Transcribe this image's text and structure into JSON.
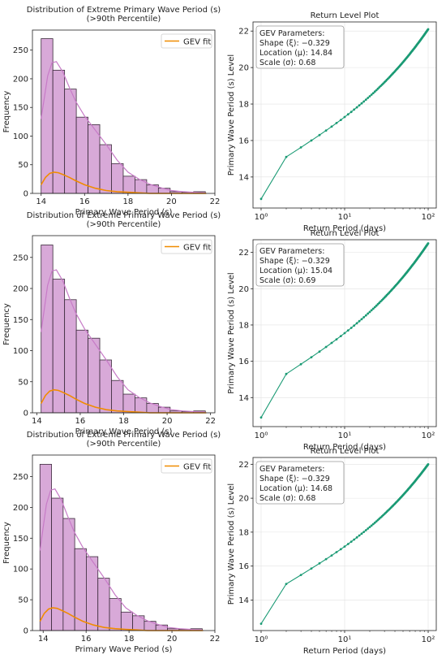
{
  "chart_data": [
    {
      "type": "bar",
      "title": "Distribution of Extreme Primary Wave Period (s)",
      "subtitle": "(>90th Percentile)",
      "xlabel": "Primary Wave Period (s)",
      "ylabel": "Frequency",
      "xlim": [
        13.6,
        22.0
      ],
      "ylim": [
        0,
        285
      ],
      "xticks": [
        14,
        16,
        18,
        20,
        22
      ],
      "yticks": [
        0,
        50,
        100,
        150,
        200,
        250
      ],
      "bins": [
        {
          "x0": 14.0,
          "x1": 14.54,
          "value": 270
        },
        {
          "x0": 14.54,
          "x1": 15.08,
          "value": 215
        },
        {
          "x0": 15.08,
          "x1": 15.62,
          "value": 182
        },
        {
          "x0": 15.62,
          "x1": 16.16,
          "value": 133
        },
        {
          "x0": 16.16,
          "x1": 16.7,
          "value": 120
        },
        {
          "x0": 16.7,
          "x1": 17.24,
          "value": 85
        },
        {
          "x0": 17.24,
          "x1": 17.78,
          "value": 52
        },
        {
          "x0": 17.78,
          "x1": 18.32,
          "value": 30
        },
        {
          "x0": 18.32,
          "x1": 18.86,
          "value": 24
        },
        {
          "x0": 18.86,
          "x1": 19.4,
          "value": 15
        },
        {
          "x0": 19.4,
          "x1": 19.94,
          "value": 9
        },
        {
          "x0": 19.94,
          "x1": 20.48,
          "value": 3
        },
        {
          "x0": 20.48,
          "x1": 21.02,
          "value": 2
        },
        {
          "x0": 21.02,
          "x1": 21.56,
          "value": 3
        }
      ],
      "kde": {
        "x": [
          14.0,
          14.3,
          14.5,
          14.7,
          15.0,
          15.3,
          15.6,
          16.0,
          16.5,
          17.0,
          17.5,
          18.0,
          18.5,
          19.0,
          19.5,
          20.0,
          20.5,
          21.0,
          21.5,
          21.6
        ],
        "y": [
          130,
          205,
          228,
          230,
          212,
          185,
          160,
          135,
          110,
          85,
          58,
          37,
          25,
          16,
          10,
          5,
          3,
          2,
          1,
          0
        ]
      },
      "gev_fit": {
        "name": "GEV fit",
        "x": [
          14.0,
          14.2,
          14.4,
          14.6,
          14.8,
          15.0,
          15.3,
          15.6,
          16.0,
          16.5,
          17.0,
          17.5,
          18.0,
          18.5,
          19.0,
          19.5,
          20.0,
          20.5,
          21.0,
          21.5,
          21.6
        ],
        "y": [
          15,
          28,
          35,
          37,
          36,
          33,
          28,
          22,
          15,
          9,
          5,
          3,
          2,
          1,
          0,
          0,
          0,
          0,
          0,
          0,
          0
        ]
      }
    },
    {
      "type": "line",
      "title": "Return Level Plot",
      "xlabel": "Return Period (days)",
      "ylabel": "Primary Wave Period (s) Level",
      "xscale": "log",
      "xlim": [
        0.8,
        125
      ],
      "ylim": [
        12.3,
        22.5
      ],
      "yticks": [
        14,
        16,
        18,
        20,
        22
      ],
      "xticks": [
        1,
        10,
        100
      ],
      "xtick_labels": [
        "10⁰",
        "10¹",
        "10²"
      ],
      "params_box": {
        "heading": "GEV Parameters:",
        "shape": "Shape (ξ): −0.329",
        "location": "Location (μ): 14.84",
        "scale": "Scale (σ): 0.68"
      },
      "curve": {
        "level_at_1": 12.8,
        "level_at_2": 15.1,
        "level_at_100": 22.1
      }
    },
    {
      "type": "bar",
      "title": "Distribution of Extreme Primary Wave Period (s)",
      "subtitle": "(>90th Percentile)",
      "xlabel": "Primary Wave Period (s)",
      "ylabel": "Frequency",
      "xlim": [
        13.8,
        22.2
      ],
      "ylim": [
        0,
        285
      ],
      "xticks": [
        14,
        16,
        18,
        20,
        22
      ],
      "yticks": [
        0,
        50,
        100,
        150,
        200,
        250
      ],
      "bins": [
        {
          "x0": 14.2,
          "x1": 14.74,
          "value": 270
        },
        {
          "x0": 14.74,
          "x1": 15.28,
          "value": 215
        },
        {
          "x0": 15.28,
          "x1": 15.82,
          "value": 182
        },
        {
          "x0": 15.82,
          "x1": 16.36,
          "value": 133
        },
        {
          "x0": 16.36,
          "x1": 16.9,
          "value": 120
        },
        {
          "x0": 16.9,
          "x1": 17.44,
          "value": 85
        },
        {
          "x0": 17.44,
          "x1": 17.98,
          "value": 52
        },
        {
          "x0": 17.98,
          "x1": 18.52,
          "value": 30
        },
        {
          "x0": 18.52,
          "x1": 19.06,
          "value": 24
        },
        {
          "x0": 19.06,
          "x1": 19.6,
          "value": 15
        },
        {
          "x0": 19.6,
          "x1": 20.14,
          "value": 9
        },
        {
          "x0": 20.14,
          "x1": 20.68,
          "value": 3
        },
        {
          "x0": 20.68,
          "x1": 21.22,
          "value": 2
        },
        {
          "x0": 21.22,
          "x1": 21.76,
          "value": 3
        }
      ],
      "kde": {
        "x": [
          14.2,
          14.5,
          14.7,
          14.9,
          15.2,
          15.5,
          15.8,
          16.2,
          16.7,
          17.2,
          17.7,
          18.2,
          18.7,
          19.2,
          19.7,
          20.2,
          20.7,
          21.2,
          21.7,
          21.8
        ],
        "y": [
          130,
          205,
          228,
          230,
          212,
          185,
          160,
          135,
          110,
          85,
          58,
          37,
          25,
          16,
          10,
          5,
          3,
          2,
          1,
          0
        ]
      },
      "gev_fit": {
        "name": "GEV fit",
        "x": [
          14.2,
          14.4,
          14.6,
          14.8,
          15.0,
          15.2,
          15.5,
          15.8,
          16.2,
          16.7,
          17.2,
          17.7,
          18.2,
          18.7,
          19.2,
          19.7,
          20.2,
          20.7,
          21.2,
          21.7,
          21.8
        ],
        "y": [
          15,
          28,
          35,
          37,
          36,
          33,
          28,
          22,
          15,
          9,
          5,
          3,
          2,
          1,
          0,
          0,
          0,
          0,
          0,
          0,
          0
        ]
      }
    },
    {
      "type": "line",
      "title": "Return Level Plot",
      "xlabel": "Return Period (days)",
      "ylabel": "Primary Wave Period (s) Level",
      "xscale": "log",
      "xlim": [
        0.8,
        125
      ],
      "ylim": [
        12.4,
        22.7
      ],
      "yticks": [
        14,
        16,
        18,
        20,
        22
      ],
      "xticks": [
        1,
        10,
        100
      ],
      "xtick_labels": [
        "10⁰",
        "10¹",
        "10²"
      ],
      "params_box": {
        "heading": "GEV Parameters:",
        "shape": "Shape (ξ): −0.329",
        "location": "Location (μ): 15.04",
        "scale": "Scale (σ): 0.69"
      },
      "curve": {
        "level_at_1": 12.9,
        "level_at_2": 15.3,
        "level_at_100": 22.5
      }
    },
    {
      "type": "bar",
      "title": "Distribution of Extreme Primary Wave Period (s)",
      "subtitle": "(>90th Percentile)",
      "xlabel": "Primary Wave Period (s)",
      "ylabel": "Frequency",
      "xlim": [
        13.5,
        22.0
      ],
      "ylim": [
        0,
        285
      ],
      "xticks": [
        14,
        16,
        18,
        20,
        22
      ],
      "yticks": [
        0,
        50,
        100,
        150,
        200,
        250
      ],
      "bins": [
        {
          "x0": 13.85,
          "x1": 14.39,
          "value": 270
        },
        {
          "x0": 14.39,
          "x1": 14.93,
          "value": 215
        },
        {
          "x0": 14.93,
          "x1": 15.47,
          "value": 182
        },
        {
          "x0": 15.47,
          "x1": 16.01,
          "value": 133
        },
        {
          "x0": 16.01,
          "x1": 16.55,
          "value": 120
        },
        {
          "x0": 16.55,
          "x1": 17.09,
          "value": 85
        },
        {
          "x0": 17.09,
          "x1": 17.63,
          "value": 52
        },
        {
          "x0": 17.63,
          "x1": 18.17,
          "value": 30
        },
        {
          "x0": 18.17,
          "x1": 18.71,
          "value": 24
        },
        {
          "x0": 18.71,
          "x1": 19.25,
          "value": 15
        },
        {
          "x0": 19.25,
          "x1": 19.79,
          "value": 9
        },
        {
          "x0": 19.79,
          "x1": 20.33,
          "value": 3
        },
        {
          "x0": 20.33,
          "x1": 20.87,
          "value": 2
        },
        {
          "x0": 20.87,
          "x1": 21.41,
          "value": 3
        }
      ],
      "kde": {
        "x": [
          13.85,
          14.15,
          14.35,
          14.55,
          14.85,
          15.15,
          15.45,
          15.85,
          16.35,
          16.85,
          17.35,
          17.85,
          18.35,
          18.85,
          19.35,
          19.85,
          20.35,
          20.85,
          21.35,
          21.45
        ],
        "y": [
          130,
          205,
          228,
          230,
          212,
          185,
          160,
          135,
          110,
          85,
          58,
          37,
          25,
          16,
          10,
          5,
          3,
          2,
          1,
          0
        ]
      },
      "gev_fit": {
        "name": "GEV fit",
        "x": [
          13.85,
          14.05,
          14.25,
          14.45,
          14.65,
          14.85,
          15.15,
          15.45,
          15.85,
          16.35,
          16.85,
          17.35,
          17.85,
          18.35,
          18.85,
          19.35,
          19.85,
          20.35,
          20.85,
          21.35,
          21.45
        ],
        "y": [
          15,
          28,
          35,
          37,
          36,
          33,
          28,
          22,
          15,
          9,
          5,
          3,
          2,
          1,
          0,
          0,
          0,
          0,
          0,
          0,
          0
        ]
      }
    },
    {
      "type": "line",
      "title": "Return Level Plot",
      "xlabel": "Return Period (days)",
      "ylabel": "Primary Wave Period (s) Level",
      "xscale": "log",
      "xlim": [
        0.8,
        125
      ],
      "ylim": [
        12.2,
        22.4
      ],
      "yticks": [
        14,
        16,
        18,
        20,
        22
      ],
      "xticks": [
        1,
        10,
        100
      ],
      "xtick_labels": [
        "10⁰",
        "10¹",
        "10²"
      ],
      "params_box": {
        "heading": "GEV Parameters:",
        "shape": "Shape (ξ): −0.329",
        "location": "Location (μ): 14.68",
        "scale": "Scale (σ): 0.68"
      },
      "curve": {
        "level_at_1": 12.6,
        "level_at_2": 14.95,
        "level_at_100": 22.0
      }
    }
  ],
  "colors": {
    "bar_fill": "#d8a9d8",
    "bar_edge": "#3a2a3a",
    "kde_line": "#c77bc7",
    "gev_line": "#f08c00",
    "return_line": "#1a9a74",
    "grid": "#e2e2e2",
    "axis": "#222222"
  }
}
